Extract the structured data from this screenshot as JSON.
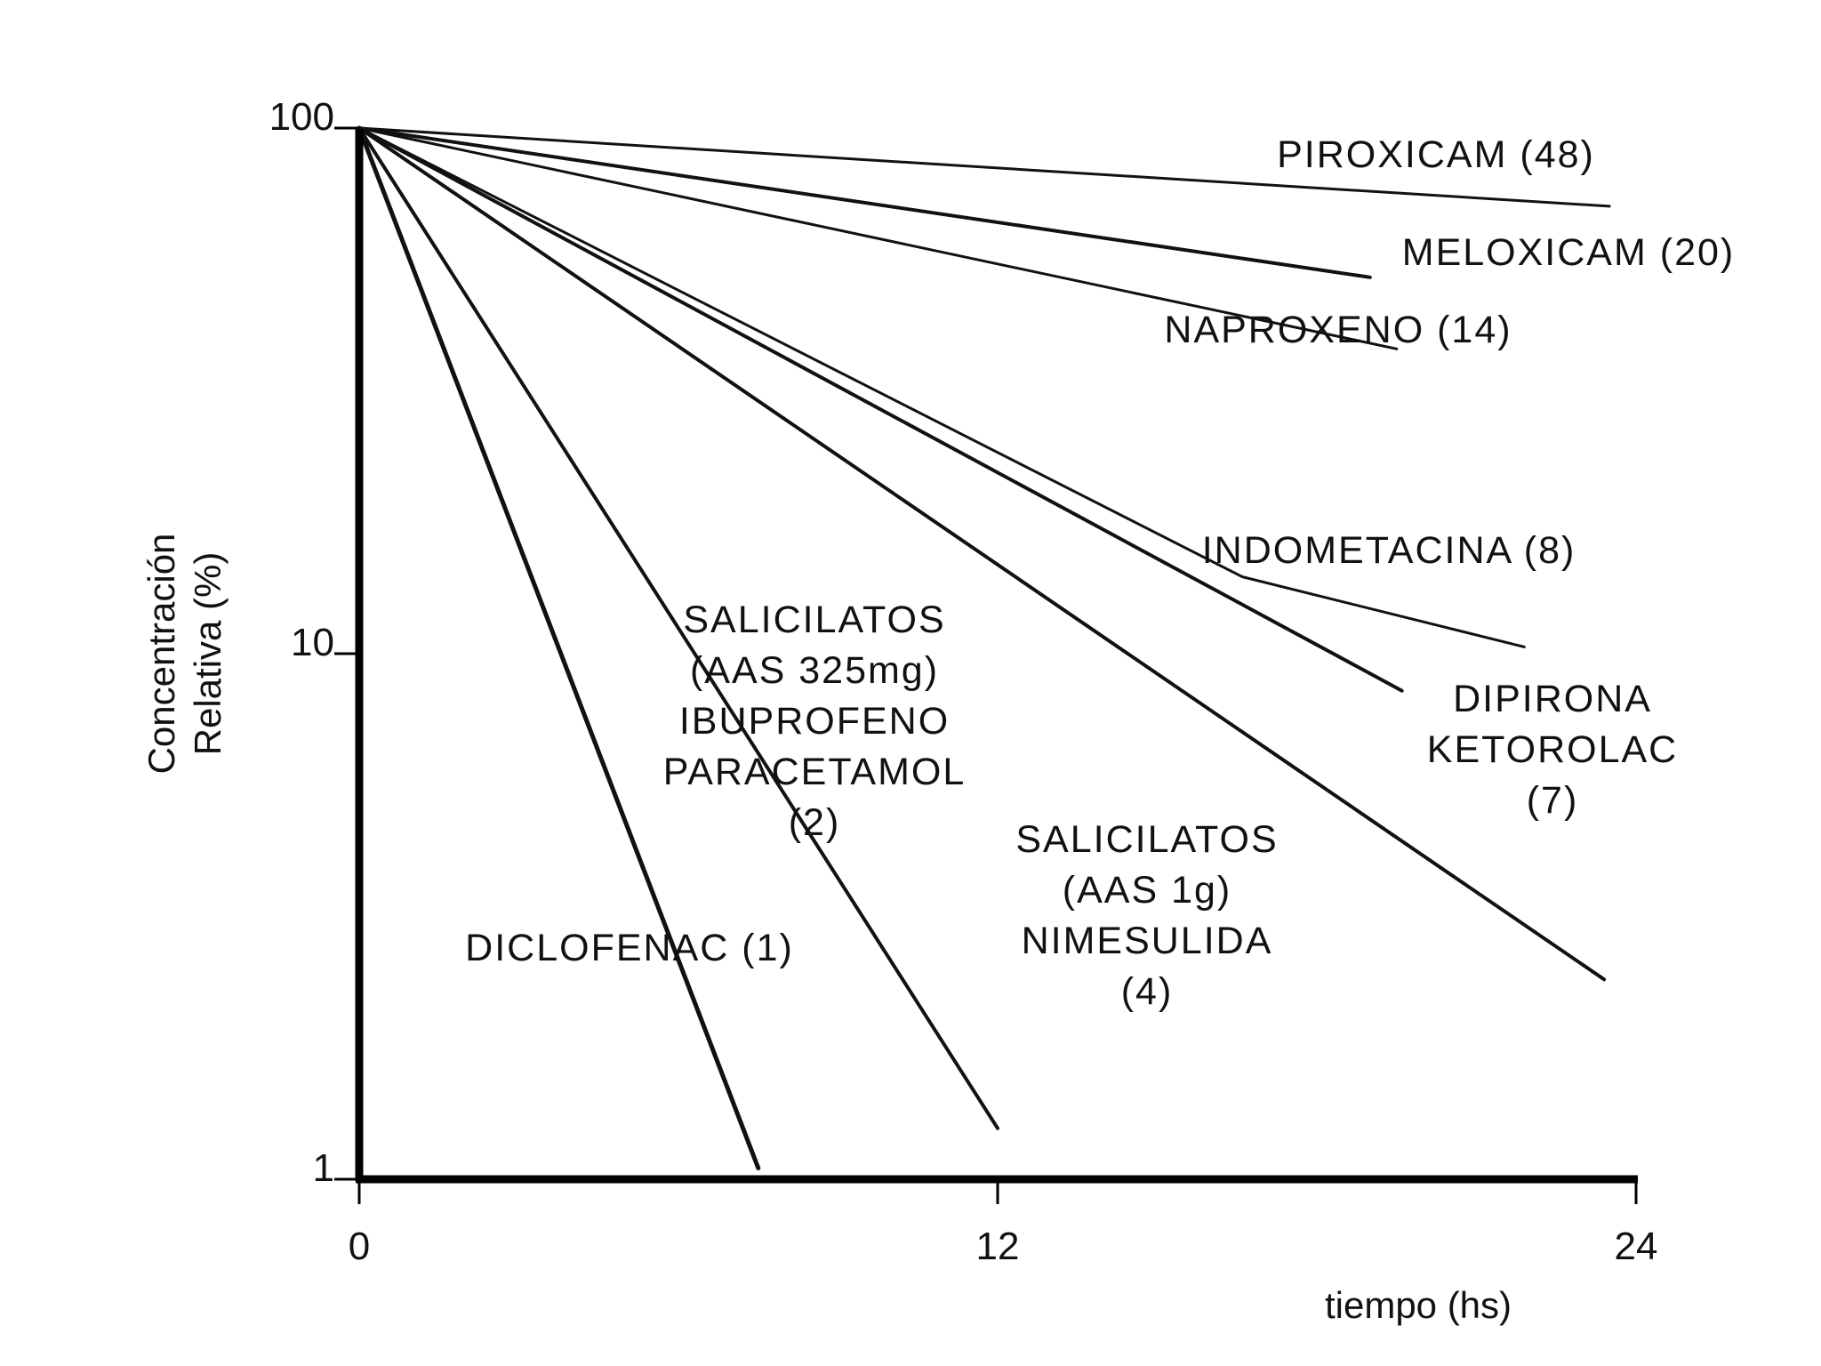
{
  "chart_data": {
    "type": "line",
    "title": "",
    "xlabel": "tiempo (hs)",
    "ylabel_lines": [
      "Concentración",
      "Relativa (%)"
    ],
    "x_scale": "linear",
    "y_scale": "log",
    "xlim": [
      0,
      24
    ],
    "ylim": [
      1,
      100
    ],
    "x_ticks": [
      0,
      12,
      24
    ],
    "x_tick_labels": [
      "0",
      "12",
      "24"
    ],
    "y_ticks": [
      1,
      10,
      100
    ],
    "y_tick_labels": [
      "1",
      "10",
      "100"
    ],
    "grid": false,
    "legend": "none",
    "series": [
      {
        "name": "PIROXICAM (48)",
        "label_lines": [
          "PIROXICAM (48)"
        ],
        "x": [
          0,
          23.5
        ],
        "y": [
          100,
          71
        ],
        "color": "#111111"
      },
      {
        "name": "MELOXICAM (20)",
        "label_lines": [
          "MELOXICAM (20)"
        ],
        "x": [
          0,
          19
        ],
        "y": [
          100,
          52
        ],
        "color": "#111111"
      },
      {
        "name": "NAPROXENO (14)",
        "label_lines": [
          "NAPROXENO (14)"
        ],
        "x": [
          0,
          19.5
        ],
        "y": [
          100,
          38
        ],
        "color": "#111111"
      },
      {
        "name": "INDOMETACINA (8)",
        "label_lines": [
          "INDOMETACINA (8)"
        ],
        "x": [
          0,
          16.6,
          21.9
        ],
        "y": [
          100,
          14,
          10.3
        ],
        "color": "#111111"
      },
      {
        "name": "DIPIRONA KETOROLAC (7)",
        "label_lines": [
          "DIPIRONA",
          "KETOROLAC",
          "(7)"
        ],
        "x": [
          0,
          19.6
        ],
        "y": [
          100,
          8.5
        ],
        "color": "#111111"
      },
      {
        "name": "SALICILATOS (AAS 1g) NIMESULIDA (4)",
        "label_lines": [
          "SALICILATOS",
          "(AAS 1g)",
          "NIMESULIDA",
          "(4)"
        ],
        "x": [
          0,
          23.4
        ],
        "y": [
          100,
          2.4
        ],
        "color": "#111111"
      },
      {
        "name": "SALICILATOS (AAS 325mg) IBUPROFENO PARACETAMOL (2)",
        "label_lines": [
          "SALICILATOS",
          "(AAS 325mg)",
          "IBUPROFENO",
          "PARACETAMOL",
          "(2)"
        ],
        "x": [
          0,
          12
        ],
        "y": [
          100,
          1.25
        ],
        "color": "#111111"
      },
      {
        "name": "DICLOFENAC (1)",
        "label_lines": [
          "DICLOFENAC (1)"
        ],
        "x": [
          0,
          7.5
        ],
        "y": [
          100,
          1.05
        ],
        "color": "#111111"
      }
    ]
  }
}
